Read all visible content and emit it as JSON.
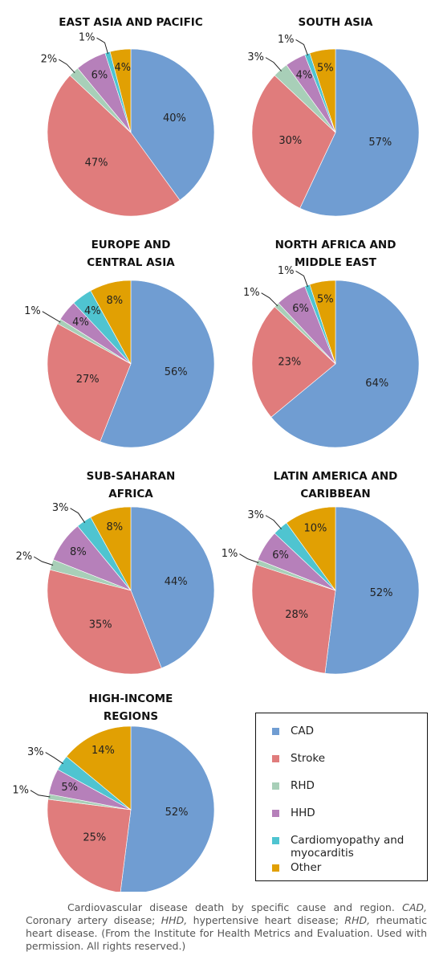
{
  "chart_data": [
    {
      "type": "pie",
      "title": [
        "EAST ASIA AND PACIFIC"
      ],
      "values": [
        40,
        47,
        2,
        6,
        1,
        4
      ],
      "value_labels": [
        "40%",
        "47%",
        "2%",
        "6%",
        "1%",
        "4%"
      ]
    },
    {
      "type": "pie",
      "title": [
        "SOUTH ASIA"
      ],
      "values": [
        57,
        30,
        3,
        4,
        1,
        5
      ],
      "value_labels": [
        "57%",
        "30%",
        "3%",
        "4%",
        "1%",
        "5%"
      ]
    },
    {
      "type": "pie",
      "title": [
        "EUROPE AND",
        "CENTRAL ASIA"
      ],
      "values": [
        56,
        27,
        1,
        4,
        4,
        8
      ],
      "value_labels": [
        "56%",
        "27%",
        "1%",
        "4%",
        "4%",
        "8%"
      ]
    },
    {
      "type": "pie",
      "title": [
        "NORTH AFRICA AND",
        "MIDDLE EAST"
      ],
      "values": [
        64,
        23,
        1,
        6,
        1,
        5
      ],
      "value_labels": [
        "64%",
        "23%",
        "1%",
        "6%",
        "1%",
        "5%"
      ]
    },
    {
      "type": "pie",
      "title": [
        "SUB-SAHARAN",
        "AFRICA"
      ],
      "values": [
        44,
        35,
        2,
        8,
        3,
        8
      ],
      "value_labels": [
        "44%",
        "35%",
        "2%",
        "8%",
        "3%",
        "8%"
      ]
    },
    {
      "type": "pie",
      "title": [
        "LATIN AMERICA AND",
        "CARIBBEAN"
      ],
      "values": [
        52,
        28,
        1,
        6,
        3,
        10
      ],
      "value_labels": [
        "52%",
        "28%",
        "1%",
        "6%",
        "3%",
        "10%"
      ]
    },
    {
      "type": "pie",
      "title": [
        "HIGH-INCOME",
        "REGIONS"
      ],
      "values": [
        52,
        25,
        1,
        5,
        3,
        14
      ],
      "value_labels": [
        "52%",
        "25%",
        "1%",
        "5%",
        "3%",
        "14%"
      ]
    }
  ],
  "legend": {
    "labels": [
      "CAD",
      "Stroke",
      "RHD",
      "HHD",
      "Cardiomyopathy and myocarditis",
      "Other"
    ],
    "colors": [
      "#709dd2",
      "#e07c7c",
      "#a8cfb8",
      "#b680ba",
      "#4fc4d0",
      "#e1a003"
    ]
  },
  "caption": [
    "Cardiovascular disease death by specific cause and region. ",
    "CAD,",
    " Coronary artery disease; ",
    "HHD,",
    " hypertensive heart disease; ",
    "RHD,",
    " rheumatic heart disease. (From the Institute for Health Metrics and Evaluation. Used with permission. All rights reserved.)"
  ]
}
